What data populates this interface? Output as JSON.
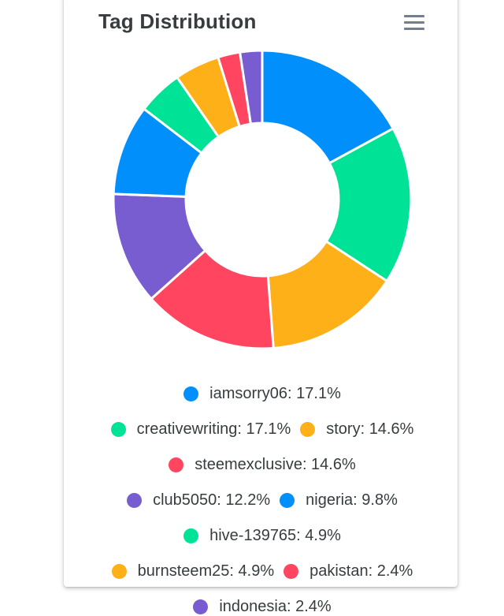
{
  "card": {
    "title": "Tag Distribution",
    "menu_icon": "hamburger-menu-icon"
  },
  "chart_data": {
    "type": "pie",
    "variant": "donut",
    "title": "Tag Distribution",
    "legend_position": "bottom",
    "slices": [
      {
        "label": "iamsorry06",
        "value": 17.1,
        "display": "iamsorry06: 17.1%",
        "color": "#008ffb"
      },
      {
        "label": "creativewriting",
        "value": 17.1,
        "display": "creativewriting: 17.1%",
        "color": "#00e396"
      },
      {
        "label": "story",
        "value": 14.6,
        "display": "story: 14.6%",
        "color": "#feb019"
      },
      {
        "label": "steemexclusive",
        "value": 14.6,
        "display": "steemexclusive: 14.6%",
        "color": "#ff4560"
      },
      {
        "label": "club5050",
        "value": 12.2,
        "display": "club5050: 12.2%",
        "color": "#775dd0"
      },
      {
        "label": "nigeria",
        "value": 9.8,
        "display": "nigeria: 9.8%",
        "color": "#008ffb"
      },
      {
        "label": "hive-139765",
        "value": 4.9,
        "display": "hive-139765: 4.9%",
        "color": "#00e396"
      },
      {
        "label": "burnsteem25",
        "value": 4.9,
        "display": "burnsteem25: 4.9%",
        "color": "#feb019"
      },
      {
        "label": "pakistan",
        "value": 2.4,
        "display": "pakistan: 2.4%",
        "color": "#ff4560"
      },
      {
        "label": "indonesia",
        "value": 2.4,
        "display": "indonesia: 2.4%",
        "color": "#775dd0"
      }
    ],
    "legend_rows": [
      [
        0
      ],
      [
        1,
        2
      ],
      [
        3
      ],
      [
        4,
        5
      ],
      [
        6
      ],
      [
        7,
        8
      ],
      [
        9
      ]
    ]
  }
}
